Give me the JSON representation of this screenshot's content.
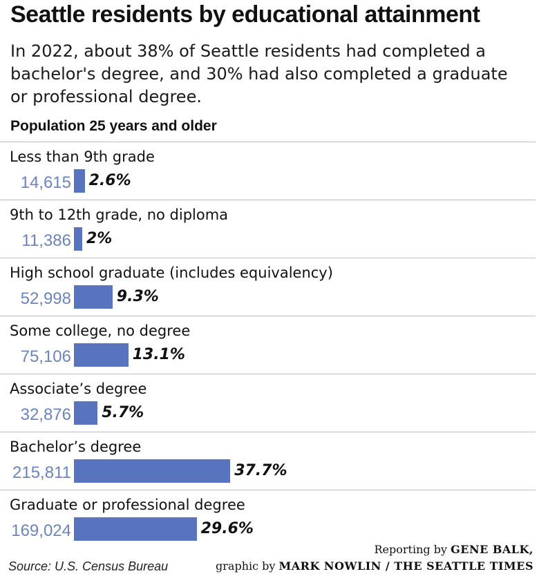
{
  "title": "Seattle residents by educational attainment",
  "subtitle": "In 2022, about 38% of Seattle residents had completed a bachelor's degree, and 30% had also completed a graduate or professional degree.",
  "population_label": "Population 25 years and older",
  "colors": {
    "bar": "#5874bf",
    "count_text": "#6a84c0"
  },
  "chart_data": {
    "type": "bar",
    "orientation": "horizontal",
    "categories": [
      "Less than 9th grade",
      "9th to 12th grade, no diploma",
      "High school graduate (includes equivalency)",
      "Some college, no degree",
      "Associate’s degree",
      "Bachelor’s degree",
      "Graduate or professional degree"
    ],
    "counts": [
      "14,615",
      "11,386",
      "52,998",
      "75,106",
      "32,876",
      "215,811",
      "169,024"
    ],
    "percent_labels": [
      "2.6%",
      "2%",
      "9.3%",
      "13.1%",
      "5.7%",
      "37.7%",
      "29.6%"
    ],
    "values": [
      2.6,
      2.0,
      9.3,
      13.1,
      5.7,
      37.7,
      29.6
    ]
  },
  "source": "Source: U.S. Census Bureau",
  "credit": {
    "line1_prefix": "Reporting by ",
    "line1_name": "GENE BALK,",
    "line2_prefix": "graphic by ",
    "line2_name": "MARK NOWLIN / THE SEATTLE TIMES"
  }
}
